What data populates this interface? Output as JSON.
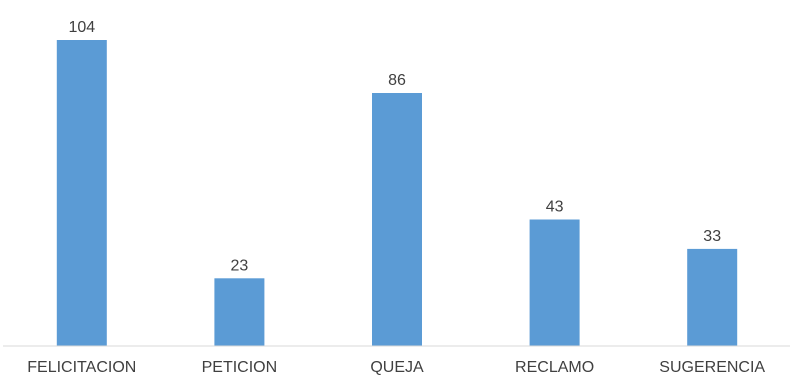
{
  "chart_data": {
    "type": "bar",
    "categories": [
      "FELICITACION",
      "PETICION",
      "QUEJA",
      "RECLAMO",
      "SUGERENCIA"
    ],
    "values": [
      104,
      23,
      86,
      43,
      33
    ],
    "data_labels": [
      "104",
      "23",
      "86",
      "43",
      "33"
    ],
    "title": "",
    "xlabel": "",
    "ylabel": "",
    "ylim": [
      0,
      104
    ],
    "grid": false,
    "legend": "none",
    "bar_color": "#5b9bd5"
  }
}
